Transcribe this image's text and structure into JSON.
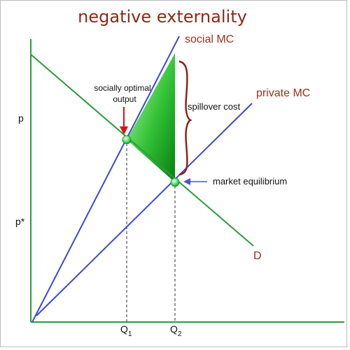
{
  "title": "negative externality",
  "labels": {
    "social_mc": "social MC",
    "private_mc": "private MC",
    "demand": "D",
    "spillover": "spillover cost",
    "socially_optimal_line1": "socially optimal",
    "socially_optimal_line2": "output",
    "market_equilibrium": "market equilibrium"
  },
  "axes": {
    "y_ticks": [
      "p",
      "p*"
    ],
    "x_ticks": [
      {
        "main": "Q",
        "sub": "1"
      },
      {
        "main": "Q",
        "sub": "2"
      }
    ]
  },
  "colors": {
    "curve_blue": "#3b48d8",
    "curve_green": "#2e9a3c",
    "label_red": "#a1301a",
    "bracket": "#8b1d12",
    "triangle_light": "#9ff59f",
    "triangle_dark": "#0f8a14",
    "arrow_red": "#e01010",
    "arrow_blue": "#4a52d8"
  }
}
